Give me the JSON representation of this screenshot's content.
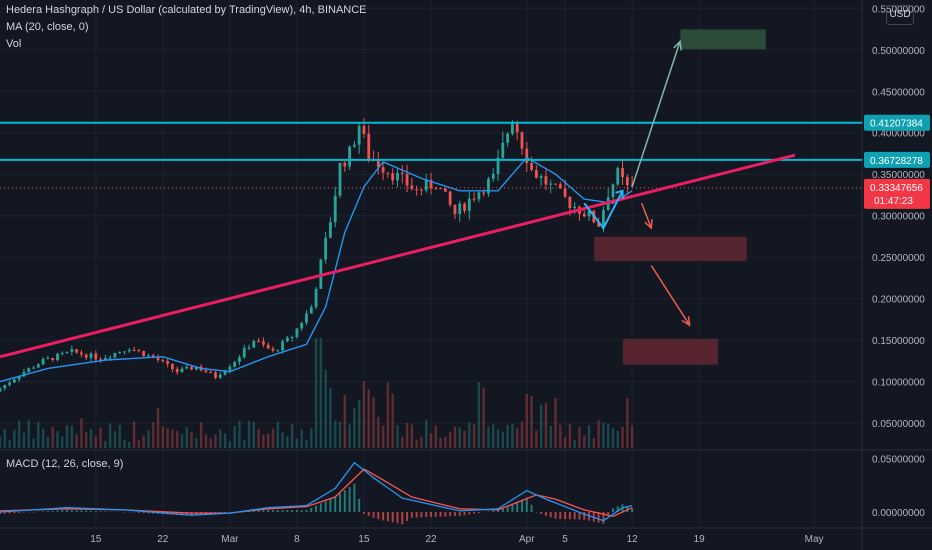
{
  "header": {
    "title": "Hedera Hashgraph / US Dollar (calculated by TradingView), 4h, BINANCE",
    "ma_legend": "MA (20, close, 0)",
    "vol_legend": "Vol",
    "macd_legend": "MACD (12, 26, close, 9)",
    "currency": "USD"
  },
  "colors": {
    "background": "#131722",
    "grid": "#1e222d",
    "up_candle": "#26a69a",
    "down_candle": "#ef5350",
    "ma_line": "#2196f3",
    "trend_line": "#e91e63",
    "horizontal_line": "#00bcd4",
    "target_up": "#2e4f3b",
    "target_down": "#5a2630",
    "macd_line": "#2196f3",
    "signal_line": "#ff5252",
    "price_label_bg": "#f23645",
    "level_label_bg": "#0fa1b2"
  },
  "chart_data": {
    "type": "candlestick",
    "symbol": "HBARUSD",
    "interval": "4h",
    "price_axis": {
      "ylim": [
        0.02,
        0.56
      ],
      "ticks": [
        "0.55000000",
        "0.50000000",
        "0.45000000",
        "0.40000000",
        "0.35000000",
        "0.30000000",
        "0.25000000",
        "0.20000000",
        "0.15000000",
        "0.10000000",
        "0.05000000"
      ]
    },
    "time_axis": {
      "xlim": [
        "2021-02-05",
        "2021-05-06"
      ],
      "ticks": [
        {
          "label": "15",
          "date": "2021-02-15"
        },
        {
          "label": "22",
          "date": "2021-02-22"
        },
        {
          "label": "Mar",
          "date": "2021-03-01"
        },
        {
          "label": "8",
          "date": "2021-03-08"
        },
        {
          "label": "15",
          "date": "2021-03-15"
        },
        {
          "label": "22",
          "date": "2021-03-22"
        },
        {
          "label": "Apr",
          "date": "2021-04-01"
        },
        {
          "label": "5",
          "date": "2021-04-05"
        },
        {
          "label": "12",
          "date": "2021-04-12"
        },
        {
          "label": "19",
          "date": "2021-04-19"
        },
        {
          "label": "May",
          "date": "2021-05-01"
        }
      ]
    },
    "price_path": [
      [
        "2021-02-05",
        0.088
      ],
      [
        "2021-02-08",
        0.112
      ],
      [
        "2021-02-10",
        0.125
      ],
      [
        "2021-02-13",
        0.136
      ],
      [
        "2021-02-16",
        0.128
      ],
      [
        "2021-02-19",
        0.141
      ],
      [
        "2021-02-22",
        0.126
      ],
      [
        "2021-02-24",
        0.112
      ],
      [
        "2021-02-26",
        0.118
      ],
      [
        "2021-02-28",
        0.106
      ],
      [
        "2021-03-02",
        0.125
      ],
      [
        "2021-03-04",
        0.15
      ],
      [
        "2021-03-06",
        0.136
      ],
      [
        "2021-03-08",
        0.155
      ],
      [
        "2021-03-10",
        0.19
      ],
      [
        "2021-03-12",
        0.295
      ],
      [
        "2021-03-13",
        0.36
      ],
      [
        "2021-03-14",
        0.375
      ],
      [
        "2021-03-15",
        0.41
      ],
      [
        "2021-03-16",
        0.372
      ],
      [
        "2021-03-18",
        0.355
      ],
      [
        "2021-03-21",
        0.33
      ],
      [
        "2021-03-23",
        0.34
      ],
      [
        "2021-03-25",
        0.302
      ],
      [
        "2021-03-27",
        0.325
      ],
      [
        "2021-03-29",
        0.345
      ],
      [
        "2021-03-31",
        0.42
      ],
      [
        "2021-04-02",
        0.355
      ],
      [
        "2021-04-04",
        0.335
      ],
      [
        "2021-04-06",
        0.315
      ],
      [
        "2021-04-08",
        0.3
      ],
      [
        "2021-04-09",
        0.29
      ],
      [
        "2021-04-10",
        0.328
      ],
      [
        "2021-04-11",
        0.35
      ],
      [
        "2021-04-12",
        0.333
      ]
    ],
    "moving_average": [
      [
        "2021-02-05",
        0.1
      ],
      [
        "2021-02-10",
        0.116
      ],
      [
        "2021-02-16",
        0.126
      ],
      [
        "2021-02-22",
        0.13
      ],
      [
        "2021-02-26",
        0.116
      ],
      [
        "2021-03-01",
        0.112
      ],
      [
        "2021-03-05",
        0.13
      ],
      [
        "2021-03-09",
        0.145
      ],
      [
        "2021-03-11",
        0.19
      ],
      [
        "2021-03-13",
        0.28
      ],
      [
        "2021-03-15",
        0.335
      ],
      [
        "2021-03-17",
        0.365
      ],
      [
        "2021-03-21",
        0.345
      ],
      [
        "2021-03-25",
        0.33
      ],
      [
        "2021-03-29",
        0.33
      ],
      [
        "2021-04-01",
        0.37
      ],
      [
        "2021-04-04",
        0.35
      ],
      [
        "2021-04-07",
        0.32
      ],
      [
        "2021-04-10",
        0.315
      ],
      [
        "2021-04-12",
        0.33
      ]
    ],
    "horizontal_lines": [
      {
        "price": 0.41207384,
        "label": "0.41207384"
      },
      {
        "price": 0.36728278,
        "label": "0.36728278"
      }
    ],
    "current_price": {
      "price": 0.33347656,
      "label": "0.33347656",
      "countdown": "01:47:23"
    },
    "trend_line": {
      "from": [
        "2021-02-05",
        0.13
      ],
      "to": [
        "2021-04-29",
        0.373
      ]
    },
    "annotations": {
      "target_boxes": [
        {
          "kind": "bullish",
          "x": [
            "2021-04-17",
            "2021-04-26"
          ],
          "y": [
            0.5,
            0.525
          ]
        },
        {
          "kind": "bearish",
          "x": [
            "2021-04-08",
            "2021-04-24"
          ],
          "y": [
            0.245,
            0.275
          ]
        },
        {
          "kind": "bearish",
          "x": [
            "2021-04-11",
            "2021-04-21"
          ],
          "y": [
            0.12,
            0.152
          ]
        }
      ],
      "arrows": [
        {
          "kind": "up",
          "from": [
            "2021-04-12",
            0.335
          ],
          "to": [
            "2021-04-17",
            0.51
          ]
        },
        {
          "kind": "down",
          "from": [
            "2021-04-13",
            0.315
          ],
          "to": [
            "2021-04-14",
            0.285
          ]
        },
        {
          "kind": "down",
          "from": [
            "2021-04-14",
            0.24
          ],
          "to": [
            "2021-04-18",
            0.168
          ]
        }
      ],
      "pattern": {
        "points": [
          [
            "2021-04-07",
            0.315
          ],
          [
            "2021-04-09",
            0.285
          ],
          [
            "2021-04-11",
            0.33
          ]
        ]
      }
    },
    "macd_axis": {
      "ylim": [
        -0.014,
        0.056
      ],
      "ticks": [
        "0.05000000",
        "0.00000000"
      ]
    },
    "macd": [
      [
        "2021-02-05",
        0.0
      ],
      [
        "2021-02-12",
        0.004
      ],
      [
        "2021-02-18",
        0.002
      ],
      [
        "2021-02-25",
        -0.003
      ],
      [
        "2021-03-01",
        -0.001
      ],
      [
        "2021-03-05",
        0.004
      ],
      [
        "2021-03-09",
        0.006
      ],
      [
        "2021-03-12",
        0.022
      ],
      [
        "2021-03-14",
        0.046
      ],
      [
        "2021-03-16",
        0.032
      ],
      [
        "2021-03-19",
        0.013
      ],
      [
        "2021-03-25",
        0.001
      ],
      [
        "2021-03-29",
        0.003
      ],
      [
        "2021-04-01",
        0.02
      ],
      [
        "2021-04-03",
        0.012
      ],
      [
        "2021-04-07",
        -0.002
      ],
      [
        "2021-04-09",
        -0.008
      ],
      [
        "2021-04-11",
        0.004
      ],
      [
        "2021-04-12",
        0.006
      ]
    ],
    "signal": [
      [
        "2021-02-05",
        0.001
      ],
      [
        "2021-02-12",
        0.003
      ],
      [
        "2021-02-18",
        0.002
      ],
      [
        "2021-02-25",
        -0.001
      ],
      [
        "2021-03-01",
        -0.001
      ],
      [
        "2021-03-05",
        0.003
      ],
      [
        "2021-03-09",
        0.005
      ],
      [
        "2021-03-12",
        0.014
      ],
      [
        "2021-03-15",
        0.04
      ],
      [
        "2021-03-17",
        0.03
      ],
      [
        "2021-03-20",
        0.014
      ],
      [
        "2021-03-25",
        0.003
      ],
      [
        "2021-03-29",
        0.002
      ],
      [
        "2021-04-02",
        0.016
      ],
      [
        "2021-04-04",
        0.012
      ],
      [
        "2021-04-07",
        0.002
      ],
      [
        "2021-04-10",
        -0.004
      ],
      [
        "2021-04-12",
        0.004
      ]
    ]
  }
}
